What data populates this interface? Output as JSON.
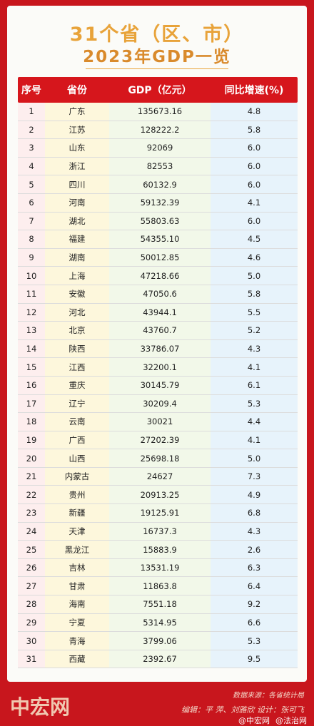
{
  "header": {
    "title_line1": "31个省（区、市）",
    "title_line2": "2023年GDP一览"
  },
  "table": {
    "columns": [
      "序号",
      "省份",
      "GDP（亿元）",
      "同比增速(%)"
    ],
    "rows": [
      [
        "1",
        "广东",
        "135673.16",
        "4.8"
      ],
      [
        "2",
        "江苏",
        "128222.2",
        "5.8"
      ],
      [
        "3",
        "山东",
        "92069",
        "6.0"
      ],
      [
        "4",
        "浙江",
        "82553",
        "6.0"
      ],
      [
        "5",
        "四川",
        "60132.9",
        "6.0"
      ],
      [
        "6",
        "河南",
        "59132.39",
        "4.1"
      ],
      [
        "7",
        "湖北",
        "55803.63",
        "6.0"
      ],
      [
        "8",
        "福建",
        "54355.10",
        "4.5"
      ],
      [
        "9",
        "湖南",
        "50012.85",
        "4.6"
      ],
      [
        "10",
        "上海",
        "47218.66",
        "5.0"
      ],
      [
        "11",
        "安徽",
        "47050.6",
        "5.8"
      ],
      [
        "12",
        "河北",
        "43944.1",
        "5.5"
      ],
      [
        "13",
        "北京",
        "43760.7",
        "5.2"
      ],
      [
        "14",
        "陕西",
        "33786.07",
        "4.3"
      ],
      [
        "15",
        "江西",
        "32200.1",
        "4.1"
      ],
      [
        "16",
        "重庆",
        "30145.79",
        "6.1"
      ],
      [
        "17",
        "辽宁",
        "30209.4",
        "5.3"
      ],
      [
        "18",
        "云南",
        "30021",
        "4.4"
      ],
      [
        "19",
        "广西",
        "27202.39",
        "4.1"
      ],
      [
        "20",
        "山西",
        "25698.18",
        "5.0"
      ],
      [
        "21",
        "内蒙古",
        "24627",
        "7.3"
      ],
      [
        "22",
        "贵州",
        "20913.25",
        "4.9"
      ],
      [
        "23",
        "新疆",
        "19125.91",
        "6.8"
      ],
      [
        "24",
        "天津",
        "16737.3",
        "4.3"
      ],
      [
        "25",
        "黑龙江",
        "15883.9",
        "2.6"
      ],
      [
        "26",
        "吉林",
        "13531.19",
        "6.3"
      ],
      [
        "27",
        "甘肃",
        "11863.8",
        "6.4"
      ],
      [
        "28",
        "海南",
        "7551.18",
        "9.2"
      ],
      [
        "29",
        "宁夏",
        "5314.95",
        "6.6"
      ],
      [
        "30",
        "青海",
        "3799.06",
        "5.3"
      ],
      [
        "31",
        "西藏",
        "2392.67",
        "9.5"
      ]
    ]
  },
  "footer": {
    "logo": "中宏网",
    "source": "数据来源：各省统计局",
    "credits": "编辑：平 萍、刘雅欣  设计：张可飞",
    "watermark": [
      "@中宏网",
      "@法治网"
    ]
  }
}
